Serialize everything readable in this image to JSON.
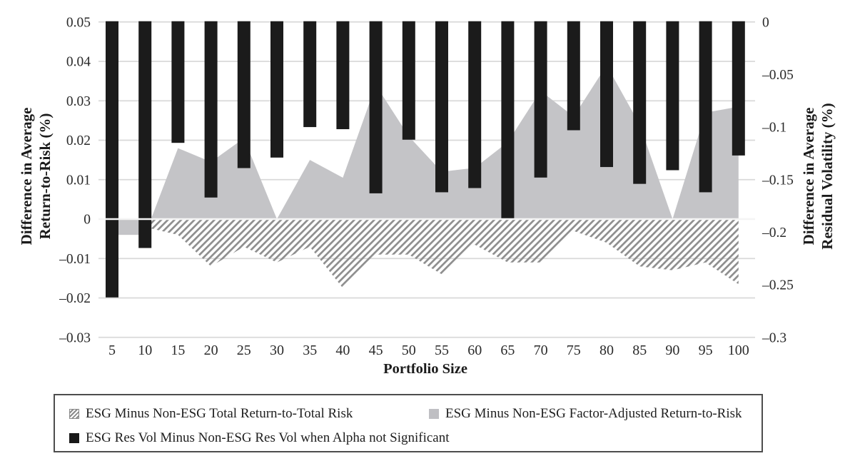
{
  "chart_data": {
    "type": "combo-area-bar",
    "categories": [
      5,
      10,
      15,
      20,
      25,
      30,
      35,
      40,
      45,
      50,
      55,
      60,
      65,
      70,
      75,
      80,
      85,
      90,
      95,
      100
    ],
    "series": [
      {
        "name": "ESG Minus Non-ESG Total Return-to-Total Risk",
        "type": "area",
        "style": "hatched",
        "axis": "left",
        "values": [
          -0.003,
          -0.002,
          -0.004,
          -0.012,
          -0.007,
          -0.011,
          -0.007,
          -0.0175,
          -0.009,
          -0.009,
          -0.014,
          -0.0065,
          -0.011,
          -0.011,
          -0.003,
          -0.006,
          -0.012,
          -0.013,
          -0.011,
          -0.0165
        ]
      },
      {
        "name": "ESG Minus Non-ESG Factor-Adjusted Return-to-Risk",
        "type": "area",
        "style": "solid-gray",
        "axis": "left",
        "values": [
          -0.004,
          -0.004,
          0.018,
          0.0145,
          0.0205,
          0.0,
          0.015,
          0.0105,
          0.034,
          0.021,
          0.012,
          0.013,
          0.0195,
          0.0325,
          0.026,
          0.039,
          0.024,
          0.0,
          0.027,
          0.0285
        ]
      },
      {
        "name": "ESG Res Vol Minus Non-ESG Res Vol when Alpha not Significant",
        "type": "bar",
        "style": "black-hanging-from-top",
        "axis": "right",
        "values": [
          -0.262,
          -0.215,
          -0.115,
          -0.167,
          -0.139,
          -0.129,
          -0.1,
          -0.102,
          -0.163,
          -0.112,
          -0.162,
          -0.158,
          -0.188,
          -0.148,
          -0.103,
          -0.138,
          -0.154,
          -0.141,
          -0.162,
          -0.127
        ]
      }
    ],
    "xlabel": "Portfolio Size",
    "ylabel_left": [
      "Difference in Average",
      "Return-to-Risk (%)"
    ],
    "ylabel_right": [
      "Difference in Average",
      "Residual Volatility (%)"
    ],
    "left_ticks": {
      "labels": [
        "0.05",
        "0.04",
        "0.03",
        "0.02",
        "0.01",
        "0",
        "–0.01",
        "–0.02",
        "–0.03"
      ],
      "values": [
        0.05,
        0.04,
        0.03,
        0.02,
        0.01,
        0,
        -0.01,
        -0.02,
        -0.03
      ]
    },
    "right_ticks": {
      "labels": [
        "0",
        "–0.05",
        "–0.1",
        "–0.15",
        "–0.2",
        "–0.25",
        "–0.3"
      ],
      "values": [
        0,
        -0.05,
        -0.1,
        -0.15,
        -0.2,
        -0.25,
        -0.3
      ]
    },
    "x_tick_labels": [
      "5",
      "10",
      "15",
      "20",
      "25",
      "30",
      "35",
      "40",
      "45",
      "50",
      "55",
      "60",
      "65",
      "70",
      "75",
      "80",
      "85",
      "90",
      "95",
      "100"
    ],
    "ylim_left": [
      -0.03,
      0.05
    ],
    "ylim_right": [
      -0.3,
      0
    ],
    "grid": "horizontal",
    "legend_position": "bottom-box",
    "colors": {
      "bar": "#1b1b1b",
      "gray_area": "#c4c4c7",
      "hatch_stripe": "#8e8e8e",
      "gridline": "#d9d9d9",
      "zero_line_overlay": "#f4f4f4",
      "text": "#2a2a2a"
    }
  },
  "legend": {
    "items": [
      {
        "swatch": "hatched",
        "label": "ESG Minus Non-ESG Total Return-to-Total Risk"
      },
      {
        "swatch": "gray",
        "label": "ESG Minus Non-ESG Factor-Adjusted Return-to-Risk"
      },
      {
        "swatch": "black",
        "label": "ESG Res Vol Minus Non-ESG Res Vol when Alpha not Significant"
      }
    ]
  }
}
